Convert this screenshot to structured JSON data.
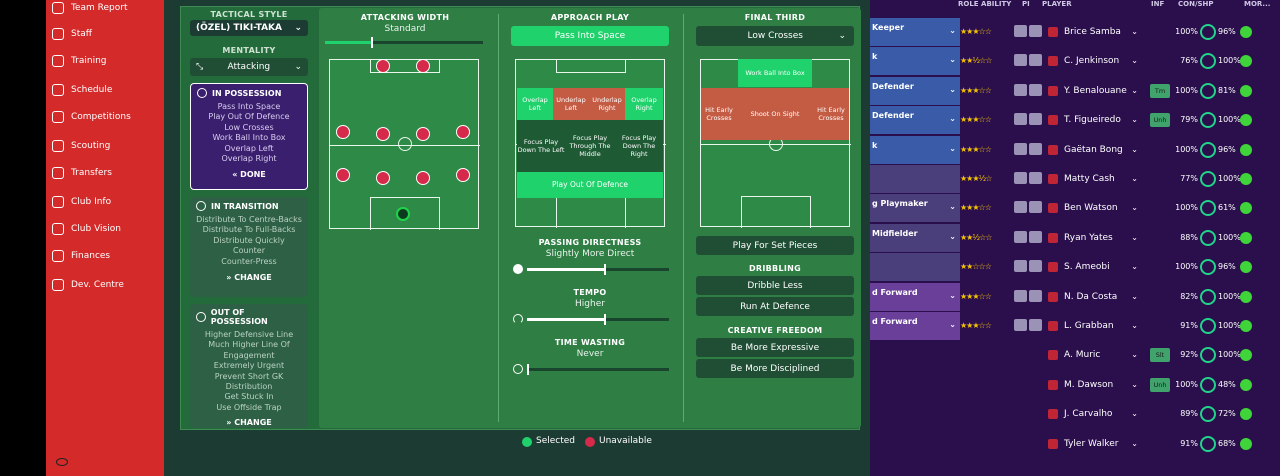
{
  "sidebar": {
    "items": [
      {
        "label": "Team Report",
        "icon": "clipboard-icon"
      },
      {
        "label": "Staff",
        "icon": "people-icon"
      },
      {
        "label": "Training",
        "icon": "training-icon"
      },
      {
        "label": "Schedule",
        "icon": "calendar-icon"
      },
      {
        "label": "Competitions",
        "icon": "trophy-icon"
      },
      {
        "label": "Scouting",
        "icon": "magnifier-icon"
      },
      {
        "label": "Transfers",
        "icon": "transfer-icon"
      },
      {
        "label": "Club Info",
        "icon": "shield-icon"
      },
      {
        "label": "Club Vision",
        "icon": "vision-icon"
      },
      {
        "label": "Finances",
        "icon": "finances-icon"
      },
      {
        "label": "Dev. Centre",
        "icon": "development-icon"
      }
    ]
  },
  "tactics": {
    "style_label": "TACTICAL STYLE",
    "style_value": "(ÖZEL) TIKI-TAKA",
    "mentality_label": "MENTALITY",
    "mentality_value": "Attacking",
    "in_possession": {
      "title": "IN POSSESSION",
      "lines": [
        "Pass Into Space",
        "Play Out Of Defence",
        "Low Crosses",
        "Work Ball Into Box",
        "Overlap Left",
        "Overlap Right"
      ],
      "button": "DONE"
    },
    "in_transition": {
      "title": "IN TRANSITION",
      "lines": [
        "Distribute To Centre-Backs",
        "Distribute To Full-Backs",
        "Distribute Quickly",
        "Counter",
        "Counter-Press"
      ],
      "button": "CHANGE"
    },
    "out_of_possession": {
      "title": "OUT OF POSSESSION",
      "lines": [
        "Higher Defensive Line",
        "Much Higher Line Of",
        "Engagement",
        "Extremely Urgent",
        "Prevent Short GK",
        "Distribution",
        "Get Stuck In",
        "Use Offside Trap"
      ],
      "button": "CHANGE"
    },
    "attacking_width": {
      "title": "ATTACKING WIDTH",
      "value": "Standard",
      "level": 0.3
    },
    "approach_play": {
      "title": "APPROACH PLAY",
      "selected": "Pass Into Space",
      "zones": {
        "overlap_left": "Overlap Left",
        "underlap_left": "Underlap Left",
        "underlap_right": "Underlap Right",
        "overlap_right": "Overlap Right",
        "focus_left": "Focus Play Down The Left",
        "focus_middle": "Focus Play Through The Middle",
        "focus_right": "Focus Play Down The Right",
        "play_out": "Play Out Of Defence"
      }
    },
    "final_third": {
      "title": "FINAL THIRD",
      "selected": "Low Crosses",
      "zones": {
        "work_ball": "Work Ball Into Box",
        "hit_early_left": "Hit Early Crosses",
        "shoot_on_sight": "Shoot On Sight",
        "hit_early_right": "Hit Early Crosses"
      },
      "set_pieces": "Play For Set Pieces",
      "dribbling_title": "DRIBBLING",
      "dribble_less": "Dribble Less",
      "run_at_defence": "Run At Defence",
      "creative_title": "CREATIVE FREEDOM",
      "more_expressive": "Be More Expressive",
      "more_disciplined": "Be More Disciplined"
    },
    "passing_directness": {
      "title": "PASSING DIRECTNESS",
      "value": "Slightly More Direct",
      "level": 0.55
    },
    "tempo": {
      "title": "TEMPO",
      "value": "Higher",
      "level": 0.55
    },
    "time_wasting": {
      "title": "TIME WASTING",
      "value": "Never",
      "level": 0.0
    },
    "legend": {
      "selected": "Selected",
      "unavailable": "Unavailable"
    }
  },
  "squad": {
    "headers": {
      "role_ability": "ROLE ABILITY",
      "pi": "PI",
      "player": "PLAYER",
      "inf": "INF",
      "con_shp": "CON/SHP",
      "mor": "MOR..."
    },
    "rows": [
      {
        "role": "Keeper",
        "stars": "★★★☆☆",
        "player": "Brice Samba",
        "inf": "",
        "con": "100%",
        "shp": "96%",
        "bg": "#3a5ca8"
      },
      {
        "role": "k",
        "stars": "★★½☆☆",
        "player": "C. Jenkinson",
        "inf": "",
        "con": "76%",
        "shp": "100%",
        "bg": "#3a5ca8"
      },
      {
        "role": "Defender",
        "stars": "★★★☆☆",
        "player": "Y. Benalouane",
        "inf": "Tm",
        "con": "100%",
        "shp": "81%",
        "bg": "#3a5ca8"
      },
      {
        "role": "Defender",
        "stars": "★★★☆☆",
        "player": "T. Figueiredo",
        "inf": "Unh",
        "con": "79%",
        "shp": "100%",
        "bg": "#3a5ca8"
      },
      {
        "role": "k",
        "stars": "★★★☆☆",
        "player": "Gaëtan Bong",
        "inf": "",
        "con": "100%",
        "shp": "96%",
        "bg": "#3a5ca8"
      },
      {
        "role": "",
        "stars": "★★★½☆",
        "player": "Matty Cash",
        "inf": "",
        "con": "77%",
        "shp": "100%",
        "bg": "#4a3f7a"
      },
      {
        "role": "g Playmaker",
        "stars": "★★★☆☆",
        "player": "Ben Watson",
        "inf": "",
        "con": "100%",
        "shp": "61%",
        "bg": "#4a3f7a"
      },
      {
        "role": "Midfielder",
        "stars": "★★½☆☆",
        "player": "Ryan Yates",
        "inf": "",
        "con": "88%",
        "shp": "100%",
        "bg": "#4a3f7a"
      },
      {
        "role": "",
        "stars": "★★☆☆☆",
        "player": "S. Ameobi",
        "inf": "",
        "con": "100%",
        "shp": "96%",
        "bg": "#4a3f7a"
      },
      {
        "role": "d Forward",
        "stars": "★★★☆☆",
        "player": "N. Da Costa",
        "inf": "",
        "con": "82%",
        "shp": "100%",
        "bg": "#6a3f9a"
      },
      {
        "role": "d Forward",
        "stars": "★★★☆☆",
        "player": "L. Grabban",
        "inf": "",
        "con": "91%",
        "shp": "100%",
        "bg": "#6a3f9a"
      },
      {
        "role": "",
        "stars": "",
        "player": "A. Muric",
        "inf": "Slt",
        "con": "92%",
        "shp": "100%",
        "bg": "#2b0f4d"
      },
      {
        "role": "",
        "stars": "",
        "player": "M. Dawson",
        "inf": "Unh",
        "con": "100%",
        "shp": "48%",
        "bg": "#2b0f4d"
      },
      {
        "role": "",
        "stars": "",
        "player": "J. Carvalho",
        "inf": "",
        "con": "89%",
        "shp": "72%",
        "bg": "#2b0f4d"
      },
      {
        "role": "",
        "stars": "",
        "player": "Tyler Walker",
        "inf": "",
        "con": "91%",
        "shp": "68%",
        "bg": "#2b0f4d"
      }
    ]
  },
  "colors": {
    "accent_green": "#1fd26b",
    "unavailable_red": "#d62a4a",
    "sidebar_red": "#d42a2a",
    "squad_purple": "#2b0f4d"
  }
}
